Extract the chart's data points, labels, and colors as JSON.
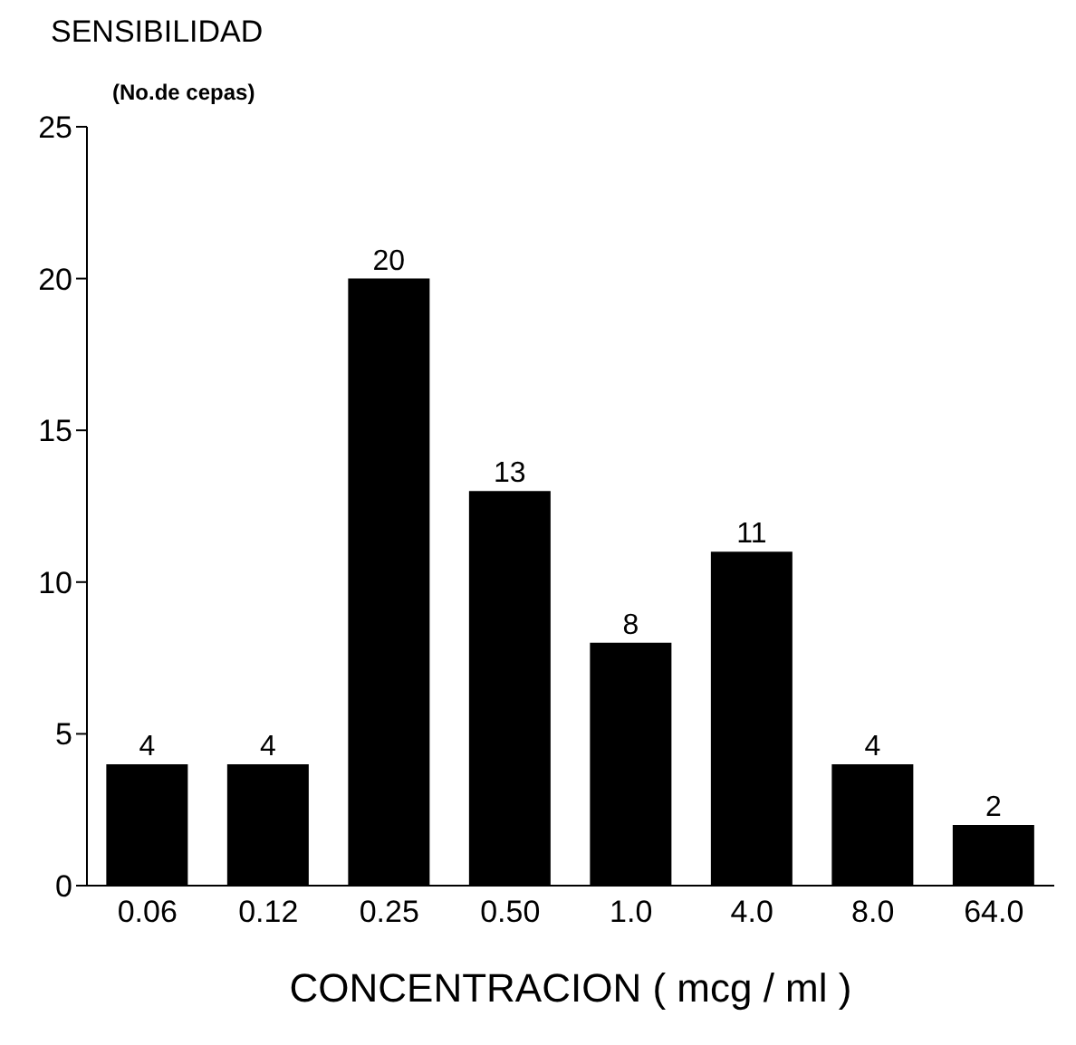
{
  "chart_data": {
    "type": "bar",
    "ylabel": "SENSIBILIDAD",
    "subtitle": "(No.de cepas)",
    "xlabel": "CONCENTRACION ( mcg / ml )",
    "categories": [
      "0.06",
      "0.12",
      "0.25",
      "0.50",
      "1.0",
      "4.0",
      "8.0",
      "64.0"
    ],
    "values": [
      4,
      4,
      20,
      13,
      8,
      11,
      4,
      2
    ],
    "color": "#000000",
    "ylim": [
      0,
      25
    ],
    "yticks": [
      0,
      5,
      10,
      15,
      20,
      25
    ],
    "grid": false,
    "legend": false,
    "data_labels": true
  }
}
